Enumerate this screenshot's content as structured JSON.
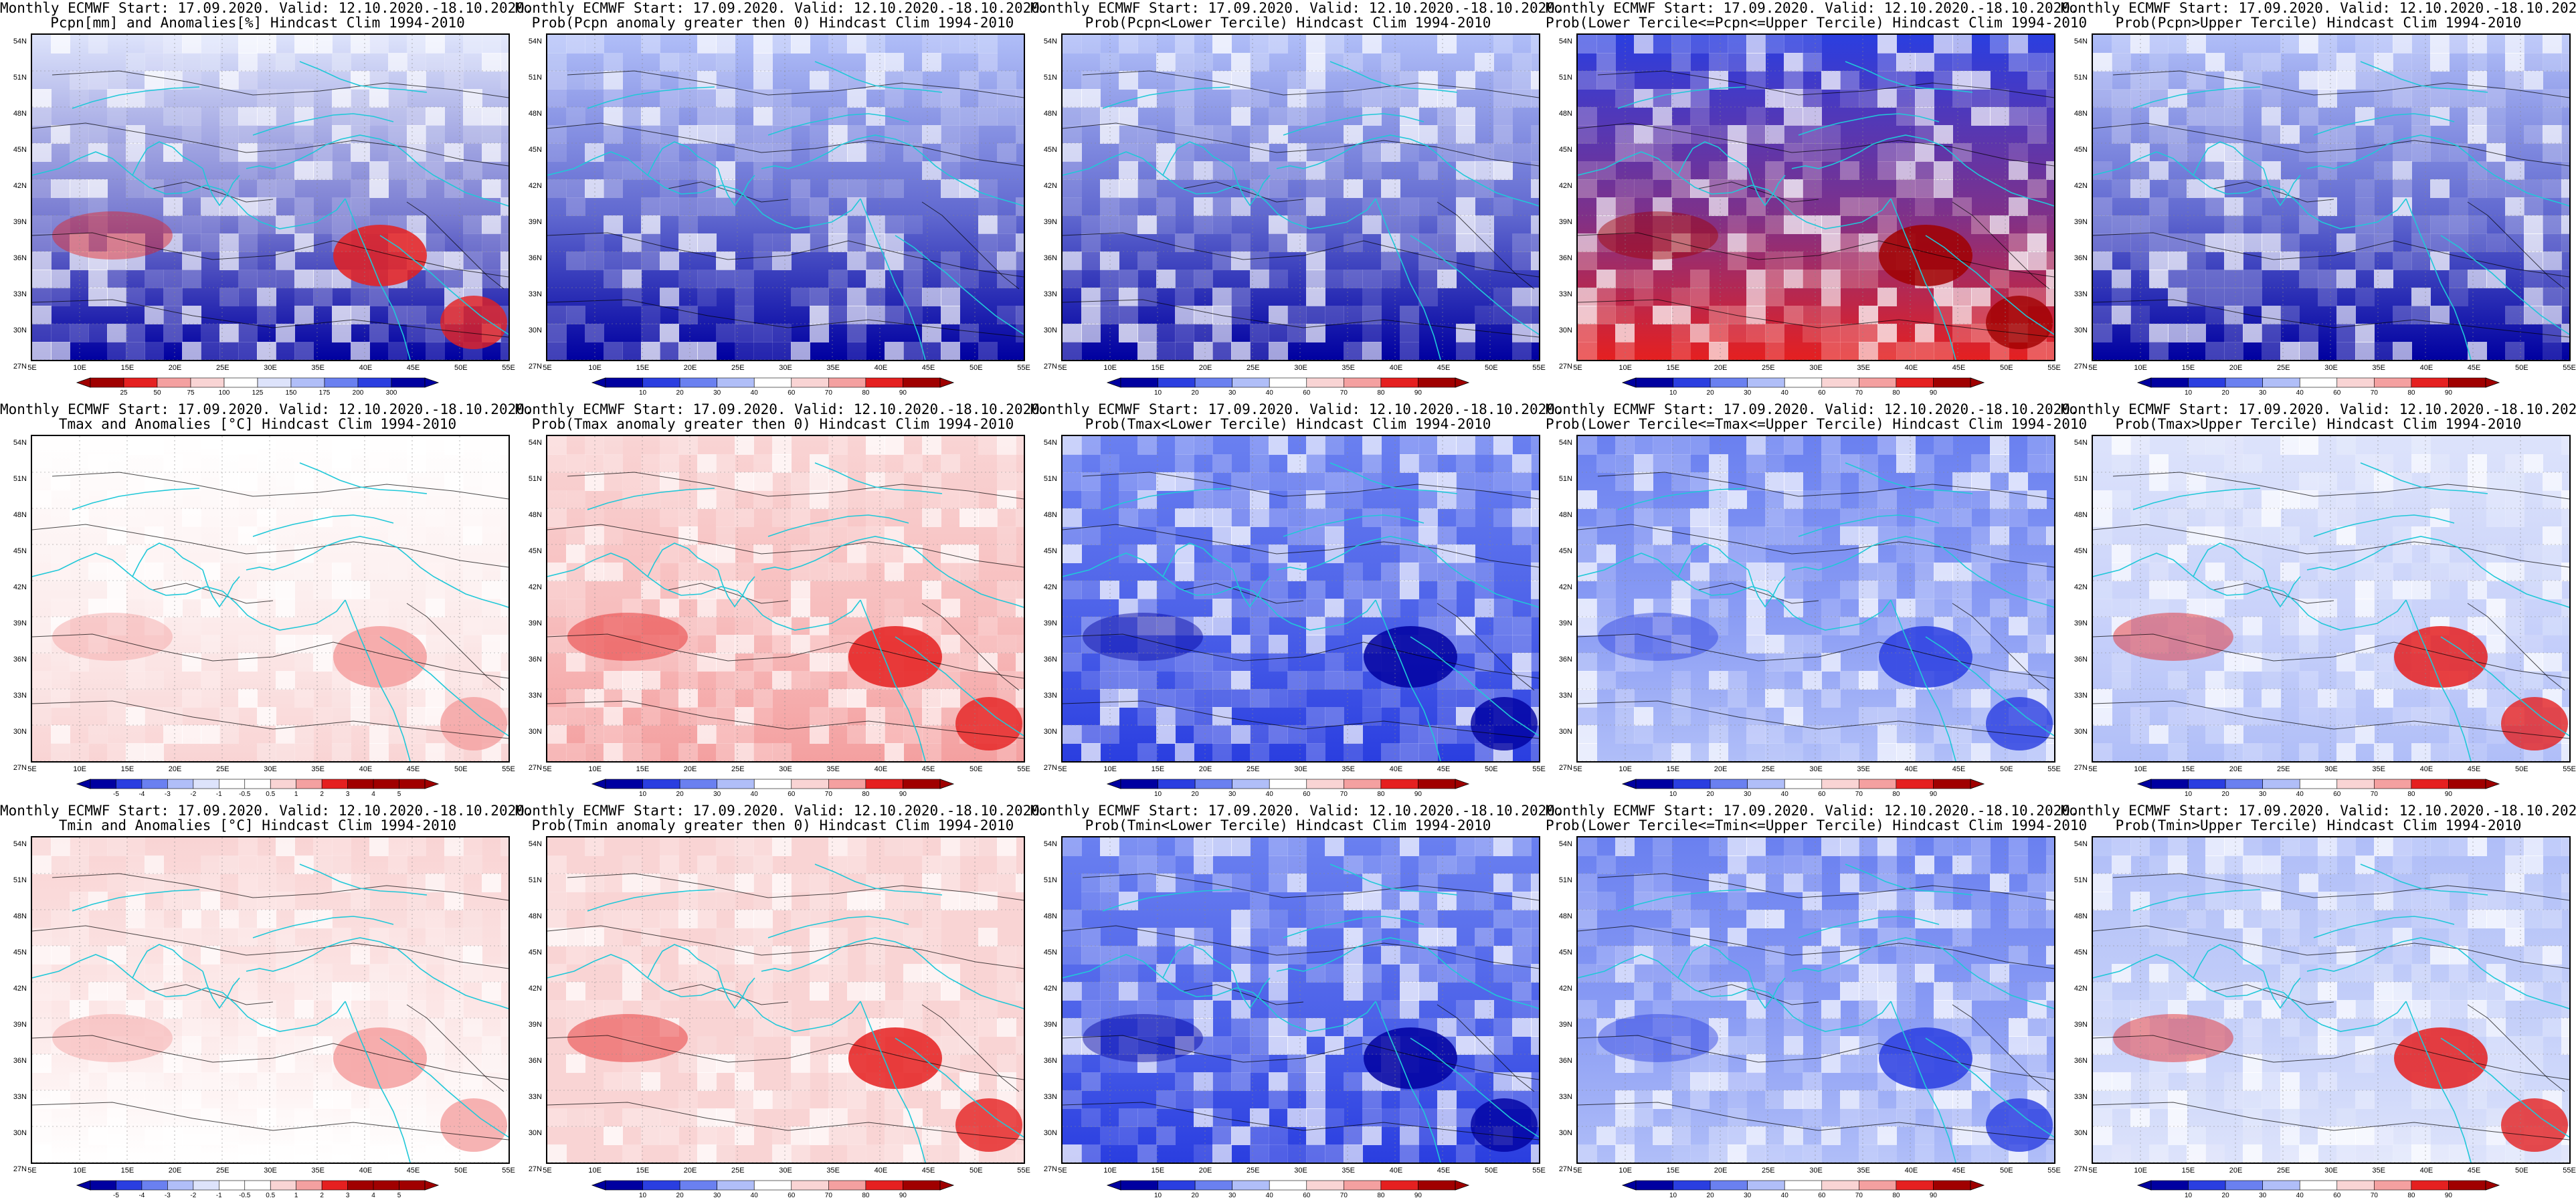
{
  "figure": {
    "lat_ticks": [
      "54N",
      "51N",
      "48N",
      "45N",
      "42N",
      "39N",
      "36N",
      "33N",
      "30N",
      "27N"
    ],
    "lon_ticks": [
      "5E",
      "10E",
      "15E",
      "20E",
      "25E",
      "30E",
      "35E",
      "40E",
      "45E",
      "50E",
      "55E"
    ],
    "colorbar_prob_levels": [
      "10",
      "20",
      "30",
      "40",
      "60",
      "70",
      "80",
      "90"
    ],
    "colorbar_pcpn_levels": [
      "25",
      "50",
      "75",
      "100",
      "125",
      "150",
      "175",
      "200",
      "300"
    ],
    "colorbar_temp_levels": [
      "-5",
      "-4",
      "-3",
      "-2",
      "-1",
      "-0.5",
      "0.5",
      "1",
      "2",
      "3",
      "4",
      "5"
    ],
    "palette": {
      "deep_blue": "#0000a0",
      "blue": "#2a3ee0",
      "mid_blue": "#6a80f0",
      "light_blue": "#b0bef8",
      "pale_blue": "#dde3fb",
      "white": "#ffffff",
      "pale_red": "#f9d4d4",
      "light_red": "#f4a0a0",
      "red": "#e52020",
      "deep_red": "#a00000",
      "coast": "#20c8d8",
      "contour": "#000000"
    }
  },
  "panels": [
    {
      "id": "pcpn-anom",
      "title": "Monthly ECMWF Start: 17.09.2020. Valid: 12.10.2020.-18.10.2020.",
      "subtitle": "Pcpn[mm] and Anomalies[%] Hindcast Clim 1994-2010",
      "colorbar": "pcpn",
      "south": "deep_blue",
      "north": "pale_blue",
      "hot": "red"
    },
    {
      "id": "pcpn-gt0",
      "title": "Monthly ECMWF Start: 17.09.2020. Valid: 12.10.2020.-18.10.2020.",
      "subtitle": "Prob(Pcpn anomaly greater then 0) Hindcast Clim 1994-2010",
      "colorbar": "prob",
      "south": "deep_blue",
      "north": "light_blue",
      "hot": null
    },
    {
      "id": "pcpn-lower",
      "title": "Monthly ECMWF Start: 17.09.2020. Valid: 12.10.2020.-18.10.2020.",
      "subtitle": "Prob(Pcpn<Lower Tercile) Hindcast Clim 1994-2010",
      "colorbar": "prob",
      "south": "deep_blue",
      "north": "light_blue",
      "hot": null
    },
    {
      "id": "pcpn-middle",
      "title": "Monthly ECMWF Start: 17.09.2020. Valid: 12.10.2020.-18.10.2020.",
      "subtitle": "Prob(Lower Tercile<=Pcpn<=Upper Tercile) Hindcast Clim 1994-2010",
      "colorbar": "prob",
      "south": "red",
      "north": "blue",
      "hot": "deep_red"
    },
    {
      "id": "pcpn-upper",
      "title": "Monthly ECMWF Start: 17.09.2020. Valid: 12.10.2020.-18.10.2020.",
      "subtitle": "Prob(Pcpn>Upper Tercile) Hindcast Clim 1994-2010",
      "colorbar": "prob",
      "south": "deep_blue",
      "north": "light_blue",
      "hot": null
    },
    {
      "id": "tmax-anom",
      "title": "Monthly ECMWF Start: 17.09.2020. Valid: 12.10.2020.-18.10.2020.",
      "subtitle": "Tmax and Anomalies [°C] Hindcast Clim 1994-2010",
      "colorbar": "temp",
      "south": "pale_red",
      "north": "white",
      "hot": "light_red"
    },
    {
      "id": "tmax-gt0",
      "title": "Monthly ECMWF Start: 17.09.2020. Valid: 12.10.2020.-18.10.2020.",
      "subtitle": "Prob(Tmax anomaly greater then 0) Hindcast Clim 1994-2010",
      "colorbar": "prob",
      "south": "light_red",
      "north": "pale_red",
      "hot": "red"
    },
    {
      "id": "tmax-lower",
      "title": "Monthly ECMWF Start: 17.09.2020. Valid: 12.10.2020.-18.10.2020.",
      "subtitle": "Prob(Tmax<Lower Tercile) Hindcast Clim 1994-2010",
      "colorbar": "prob",
      "south": "blue",
      "north": "mid_blue",
      "hot": "deep_blue"
    },
    {
      "id": "tmax-middle",
      "title": "Monthly ECMWF Start: 17.09.2020. Valid: 12.10.2020.-18.10.2020.",
      "subtitle": "Prob(Lower Tercile<=Tmax<=Upper Tercile) Hindcast Clim 1994-2010",
      "colorbar": "prob",
      "south": "light_blue",
      "north": "mid_blue",
      "hot": "blue"
    },
    {
      "id": "tmax-upper",
      "title": "Monthly ECMWF Start: 17.09.2020. Valid: 12.10.2020.-18.10.2020.",
      "subtitle": "Prob(Tmax>Upper Tercile) Hindcast Clim 1994-2010",
      "colorbar": "prob",
      "south": "light_blue",
      "north": "pale_blue",
      "hot": "red"
    },
    {
      "id": "tmin-anom",
      "title": "Monthly ECMWF Start: 17.09.2020. Valid: 12.10.2020.-18.10.2020.",
      "subtitle": "Tmin and Anomalies [°C] Hindcast Clim 1994-2010",
      "colorbar": "temp",
      "south": "white",
      "north": "pale_red",
      "hot": "light_red"
    },
    {
      "id": "tmin-gt0",
      "title": "Monthly ECMWF Start: 17.09.2020. Valid: 12.10.2020.-18.10.2020.",
      "subtitle": "Prob(Tmin anomaly greater then 0) Hindcast Clim 1994-2010",
      "colorbar": "prob",
      "south": "pale_red",
      "north": "pale_red",
      "hot": "red"
    },
    {
      "id": "tmin-lower",
      "title": "Monthly ECMWF Start: 17.09.2020. Valid: 12.10.2020.-18.10.2020.",
      "subtitle": "Prob(Tmin<Lower Tercile) Hindcast Clim 1994-2010",
      "colorbar": "prob",
      "south": "blue",
      "north": "mid_blue",
      "hot": "deep_blue"
    },
    {
      "id": "tmin-middle",
      "title": "Monthly ECMWF Start: 17.09.2020. Valid: 12.10.2020.-18.10.2020.",
      "subtitle": "Prob(Lower Tercile<=Tmin<=Upper Tercile) Hindcast Clim 1994-2010",
      "colorbar": "prob",
      "south": "light_blue",
      "north": "mid_blue",
      "hot": "blue"
    },
    {
      "id": "tmin-upper",
      "title": "Monthly ECMWF Start: 17.09.2020. Valid: 12.10.2020.-18.10.2020.",
      "subtitle": "Prob(Tmin>Upper Tercile) Hindcast Clim 1994-2010",
      "colorbar": "prob",
      "south": "pale_blue",
      "north": "light_blue",
      "hot": "red"
    }
  ]
}
